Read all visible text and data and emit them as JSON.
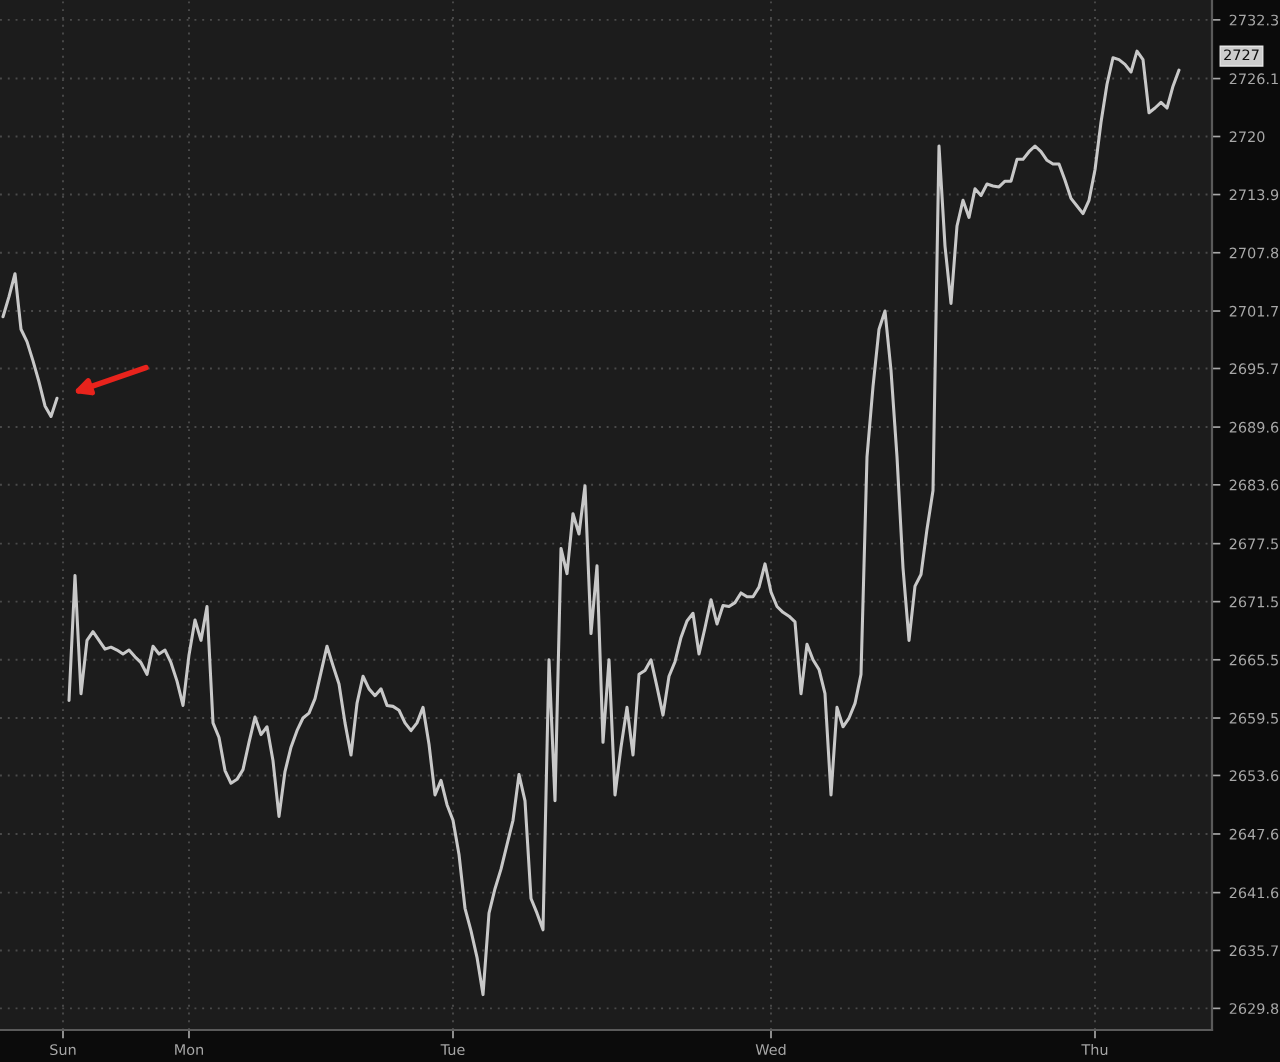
{
  "chart_data": {
    "type": "line",
    "log": true,
    "grid": true,
    "line_style": "solid",
    "marker": "none",
    "categories": [
      null,
      null,
      null,
      null,
      null,
      null,
      null,
      null,
      null,
      null,
      "Sun",
      null,
      null,
      null,
      null,
      null,
      null,
      null,
      null,
      null,
      null,
      null,
      null,
      null,
      null,
      null,
      null,
      null,
      null,
      null,
      null,
      "Mon",
      null,
      null,
      null,
      null,
      null,
      null,
      null,
      null,
      null,
      null,
      null,
      null,
      null,
      null,
      null,
      null,
      null,
      null,
      null,
      null,
      null,
      null,
      null,
      null,
      null,
      null,
      null,
      null,
      null,
      null,
      null,
      null,
      null,
      null,
      null,
      null,
      null,
      null,
      null,
      null,
      null,
      null,
      null,
      "Tue",
      null,
      null,
      null,
      null,
      null,
      null,
      null,
      null,
      null,
      null,
      null,
      null,
      null,
      null,
      null,
      null,
      null,
      null,
      null,
      null,
      null,
      null,
      null,
      null,
      null,
      null,
      null,
      null,
      null,
      null,
      null,
      null,
      null,
      null,
      null,
      null,
      null,
      null,
      null,
      null,
      null,
      null,
      null,
      null,
      null,
      null,
      null,
      null,
      null,
      null,
      null,
      null,
      "Wed",
      null,
      null,
      null,
      null,
      null,
      null,
      null,
      null,
      null,
      null,
      null,
      null,
      null,
      null,
      null,
      null,
      null,
      null,
      null,
      null,
      null,
      null,
      null,
      null,
      null,
      null,
      null,
      null,
      null,
      null,
      null,
      null,
      null,
      null,
      null,
      null,
      null,
      null,
      null,
      null,
      null,
      null,
      null,
      null,
      null,
      null,
      null,
      null,
      null,
      null,
      null,
      null,
      null,
      "Thu",
      null,
      null,
      null,
      null,
      null,
      null,
      null,
      null,
      null,
      null,
      null,
      null,
      null,
      null,
      null,
      null,
      null,
      null,
      null
    ],
    "series": [
      {
        "color": "#c8c8c8",
        "values": [
          2701.1,
          2703.2,
          2705.6,
          2699.8,
          2698.5,
          2696.5,
          2694.3,
          2691.8,
          2690.7,
          2692.6,
          null,
          2661.3,
          2674.2,
          2662.0,
          2667.5,
          2668.4,
          2667.5,
          2666.6,
          2666.8,
          2666.5,
          2666.1,
          2666.5,
          2665.8,
          2665.2,
          2664.0,
          2666.9,
          2666.1,
          2666.5,
          2665.2,
          2663.3,
          2660.8,
          2666.0,
          2669.6,
          2667.5,
          2671.0,
          2659.0,
          2657.5,
          2654.1,
          2652.8,
          2653.2,
          2654.2,
          2657.0,
          2659.6,
          2657.8,
          2658.6,
          2655.1,
          2649.4,
          2654.0,
          2656.5,
          2658.2,
          2659.5,
          2660.0,
          2661.5,
          2664.2,
          2666.9,
          2664.9,
          2663.0,
          2659.0,
          2655.7,
          2661.0,
          2663.8,
          2662.5,
          2661.8,
          2662.5,
          2660.8,
          2660.7,
          2660.3,
          2659.0,
          2658.2,
          2659.0,
          2660.6,
          2656.8,
          2651.6,
          2653.1,
          2650.6,
          2649.0,
          2645.5,
          2640.0,
          2637.7,
          2635.0,
          2631.2,
          2639.5,
          2642.0,
          2644.0,
          2646.5,
          2649.0,
          2653.7,
          2651.0,
          2641.0,
          2639.5,
          2637.8,
          2665.5,
          2651.0,
          2677.0,
          2674.4,
          2680.6,
          2678.5,
          2683.5,
          2668.2,
          2675.2,
          2657.0,
          2665.5,
          2651.6,
          2656.5,
          2660.6,
          2655.7,
          2664.0,
          2664.4,
          2665.5,
          2662.7,
          2659.8,
          2663.8,
          2665.3,
          2667.8,
          2669.5,
          2670.3,
          2666.1,
          2668.8,
          2671.7,
          2669.2,
          2671.1,
          2671.0,
          2671.4,
          2672.4,
          2672.0,
          2672.0,
          2673.0,
          2675.4,
          2672.5,
          2671.0,
          2670.4,
          2670.0,
          2669.4,
          2662.0,
          2667.1,
          2665.5,
          2664.5,
          2662.0,
          2651.6,
          2660.6,
          2658.6,
          2659.5,
          2661.0,
          2664.0,
          2686.5,
          2693.8,
          2699.8,
          2701.7,
          2695.5,
          2686.5,
          2675.0,
          2667.5,
          2673.1,
          2674.3,
          2679.0,
          2683.0,
          2719.0,
          2708.5,
          2702.5,
          2710.6,
          2713.3,
          2711.5,
          2714.5,
          2713.8,
          2715.0,
          2714.8,
          2714.7,
          2715.3,
          2715.3,
          2717.6,
          2717.6,
          2718.4,
          2719.0,
          2718.4,
          2717.5,
          2717.1,
          2717.1,
          2715.4,
          2713.5,
          2712.7,
          2711.9,
          2713.3,
          2716.5,
          2721.5,
          2725.5,
          2728.3,
          2728.1,
          2727.6,
          2726.8,
          2729.0,
          2728.1,
          2722.5,
          2723.0,
          2723.6,
          2723.0,
          2725.3,
          2727.0,
          null,
          null,
          null,
          null,
          null
        ]
      }
    ],
    "ylim": [
      2627.6,
      2734.4
    ],
    "yticks": [
      2629.8,
      2635.7,
      2641.6,
      2647.6,
      2653.6,
      2659.5,
      2665.5,
      2671.5,
      2677.5,
      2683.6,
      2689.6,
      2695.7,
      2701.7,
      2707.8,
      2713.9,
      2720,
      2726.1,
      2732.3
    ],
    "annotations": [
      "2727"
    ]
  }
}
